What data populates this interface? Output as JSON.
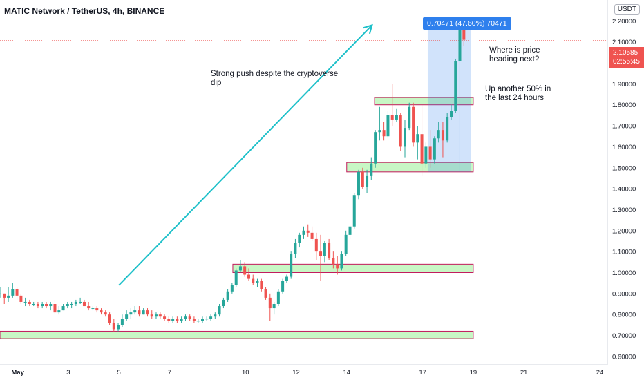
{
  "header": {
    "symbol_title": "MATIC Network / TetherUS, 4h, BINANCE",
    "currency": "USDT"
  },
  "annotations": {
    "push": [
      "Strong push despite the cryptoverse",
      "dip"
    ],
    "heading": [
      "Where is price",
      "heading next?"
    ],
    "up": [
      "Up another 50% in",
      "the last 24 hours"
    ]
  },
  "measure_label": "0.70471 (47.60%) 70471",
  "current_price": {
    "value": "2.10585",
    "countdown": "02:55:45"
  },
  "colors": {
    "up": "#26a69a",
    "down": "#ef5350",
    "zone_fill": "#c8f7c5",
    "zone_border": "#c2185b",
    "arrow": "#1ec0c9",
    "measure_fill": "#2f80ed"
  },
  "chart_data": {
    "type": "candlestick",
    "title": "MATIC Network / TetherUS, 4h, BINANCE",
    "ylim": [
      0.56,
      2.3
    ],
    "y_ticks": [
      "2.20000",
      "2.10000",
      "2.00000",
      "1.90000",
      "1.80000",
      "1.70000",
      "1.60000",
      "1.50000",
      "1.40000",
      "1.30000",
      "1.20000",
      "1.10000",
      "1.00000",
      "0.90000",
      "0.80000",
      "0.70000",
      "0.60000"
    ],
    "y_tick_values": [
      2.2,
      2.1,
      2.0,
      1.9,
      1.8,
      1.7,
      1.6,
      1.5,
      1.4,
      1.3,
      1.2,
      1.1,
      1.0,
      0.9,
      0.8,
      0.7,
      0.6
    ],
    "xlim": [
      0.3,
      24.3
    ],
    "x_ticks": [
      {
        "label": "May",
        "value": 1
      },
      {
        "label": "3",
        "value": 3
      },
      {
        "label": "5",
        "value": 5
      },
      {
        "label": "7",
        "value": 7
      },
      {
        "label": "10",
        "value": 10
      },
      {
        "label": "12",
        "value": 12
      },
      {
        "label": "14",
        "value": 14
      },
      {
        "label": "17",
        "value": 17
      },
      {
        "label": "19",
        "value": 19
      },
      {
        "label": "21",
        "value": 21
      },
      {
        "label": "24",
        "value": 24
      }
    ],
    "zones": [
      {
        "x0": 0.3,
        "x1": 19.0,
        "low": 0.685,
        "high": 0.72
      },
      {
        "x0": 9.5,
        "x1": 19.0,
        "low": 1.0,
        "high": 1.04
      },
      {
        "x0": 14.0,
        "x1": 19.0,
        "low": 1.48,
        "high": 1.525
      },
      {
        "x0": 15.1,
        "x1": 19.0,
        "low": 1.8,
        "high": 1.835
      }
    ],
    "arrow": {
      "x0": 5.0,
      "y0": 0.94,
      "x1": 15.0,
      "y1": 2.18
    },
    "measure_box": {
      "x0": 17.2,
      "x1": 18.9,
      "low": 1.48,
      "high": 2.185
    },
    "current_price": 2.10585,
    "candles": [
      {
        "x": 0.3,
        "o": 0.9,
        "h": 0.93,
        "l": 0.88,
        "c": 0.9
      },
      {
        "x": 0.47,
        "o": 0.9,
        "h": 0.9,
        "l": 0.85,
        "c": 0.88
      },
      {
        "x": 0.63,
        "o": 0.88,
        "h": 0.93,
        "l": 0.86,
        "c": 0.89
      },
      {
        "x": 0.8,
        "o": 0.89,
        "h": 0.95,
        "l": 0.88,
        "c": 0.92
      },
      {
        "x": 0.97,
        "o": 0.92,
        "h": 0.93,
        "l": 0.87,
        "c": 0.89
      },
      {
        "x": 1.13,
        "o": 0.89,
        "h": 0.9,
        "l": 0.85,
        "c": 0.86
      },
      {
        "x": 1.3,
        "o": 0.86,
        "h": 0.88,
        "l": 0.84,
        "c": 0.86
      },
      {
        "x": 1.47,
        "o": 0.86,
        "h": 0.87,
        "l": 0.84,
        "c": 0.85
      },
      {
        "x": 1.63,
        "o": 0.85,
        "h": 0.86,
        "l": 0.84,
        "c": 0.85
      },
      {
        "x": 1.8,
        "o": 0.85,
        "h": 0.86,
        "l": 0.83,
        "c": 0.84
      },
      {
        "x": 1.97,
        "o": 0.84,
        "h": 0.86,
        "l": 0.83,
        "c": 0.85
      },
      {
        "x": 2.13,
        "o": 0.85,
        "h": 0.86,
        "l": 0.83,
        "c": 0.84
      },
      {
        "x": 2.3,
        "o": 0.84,
        "h": 0.86,
        "l": 0.82,
        "c": 0.85
      },
      {
        "x": 2.47,
        "o": 0.85,
        "h": 0.87,
        "l": 0.8,
        "c": 0.81
      },
      {
        "x": 2.63,
        "o": 0.81,
        "h": 0.84,
        "l": 0.8,
        "c": 0.82
      },
      {
        "x": 2.8,
        "o": 0.82,
        "h": 0.85,
        "l": 0.82,
        "c": 0.84
      },
      {
        "x": 2.97,
        "o": 0.84,
        "h": 0.86,
        "l": 0.83,
        "c": 0.85
      },
      {
        "x": 3.13,
        "o": 0.85,
        "h": 0.86,
        "l": 0.83,
        "c": 0.85
      },
      {
        "x": 3.3,
        "o": 0.85,
        "h": 0.87,
        "l": 0.84,
        "c": 0.86
      },
      {
        "x": 3.47,
        "o": 0.86,
        "h": 0.88,
        "l": 0.85,
        "c": 0.86
      },
      {
        "x": 3.63,
        "o": 0.86,
        "h": 0.87,
        "l": 0.84,
        "c": 0.84
      },
      {
        "x": 3.8,
        "o": 0.84,
        "h": 0.86,
        "l": 0.82,
        "c": 0.83
      },
      {
        "x": 3.97,
        "o": 0.83,
        "h": 0.84,
        "l": 0.82,
        "c": 0.83
      },
      {
        "x": 4.13,
        "o": 0.83,
        "h": 0.84,
        "l": 0.81,
        "c": 0.82
      },
      {
        "x": 4.3,
        "o": 0.82,
        "h": 0.83,
        "l": 0.8,
        "c": 0.81
      },
      {
        "x": 4.47,
        "o": 0.81,
        "h": 0.82,
        "l": 0.79,
        "c": 0.8
      },
      {
        "x": 4.63,
        "o": 0.8,
        "h": 0.81,
        "l": 0.75,
        "c": 0.76
      },
      {
        "x": 4.8,
        "o": 0.76,
        "h": 0.78,
        "l": 0.72,
        "c": 0.73
      },
      {
        "x": 4.97,
        "o": 0.73,
        "h": 0.76,
        "l": 0.72,
        "c": 0.75
      },
      {
        "x": 5.13,
        "o": 0.75,
        "h": 0.8,
        "l": 0.74,
        "c": 0.78
      },
      {
        "x": 5.3,
        "o": 0.78,
        "h": 0.82,
        "l": 0.77,
        "c": 0.8
      },
      {
        "x": 5.47,
        "o": 0.8,
        "h": 0.83,
        "l": 0.78,
        "c": 0.81
      },
      {
        "x": 5.63,
        "o": 0.81,
        "h": 0.84,
        "l": 0.8,
        "c": 0.82
      },
      {
        "x": 5.8,
        "o": 0.82,
        "h": 0.84,
        "l": 0.79,
        "c": 0.8
      },
      {
        "x": 5.97,
        "o": 0.8,
        "h": 0.83,
        "l": 0.8,
        "c": 0.82
      },
      {
        "x": 6.13,
        "o": 0.82,
        "h": 0.83,
        "l": 0.79,
        "c": 0.8
      },
      {
        "x": 6.3,
        "o": 0.8,
        "h": 0.82,
        "l": 0.78,
        "c": 0.79
      },
      {
        "x": 6.47,
        "o": 0.79,
        "h": 0.81,
        "l": 0.78,
        "c": 0.8
      },
      {
        "x": 6.63,
        "o": 0.8,
        "h": 0.81,
        "l": 0.78,
        "c": 0.79
      },
      {
        "x": 6.8,
        "o": 0.79,
        "h": 0.8,
        "l": 0.77,
        "c": 0.78
      },
      {
        "x": 6.97,
        "o": 0.78,
        "h": 0.79,
        "l": 0.76,
        "c": 0.77
      },
      {
        "x": 7.13,
        "o": 0.77,
        "h": 0.79,
        "l": 0.76,
        "c": 0.78
      },
      {
        "x": 7.3,
        "o": 0.78,
        "h": 0.79,
        "l": 0.76,
        "c": 0.77
      },
      {
        "x": 7.47,
        "o": 0.77,
        "h": 0.79,
        "l": 0.76,
        "c": 0.78
      },
      {
        "x": 7.63,
        "o": 0.78,
        "h": 0.8,
        "l": 0.77,
        "c": 0.79
      },
      {
        "x": 7.8,
        "o": 0.79,
        "h": 0.8,
        "l": 0.77,
        "c": 0.78
      },
      {
        "x": 7.97,
        "o": 0.78,
        "h": 0.79,
        "l": 0.76,
        "c": 0.77
      },
      {
        "x": 8.13,
        "o": 0.77,
        "h": 0.78,
        "l": 0.76,
        "c": 0.77
      },
      {
        "x": 8.3,
        "o": 0.77,
        "h": 0.79,
        "l": 0.76,
        "c": 0.78
      },
      {
        "x": 8.47,
        "o": 0.78,
        "h": 0.79,
        "l": 0.77,
        "c": 0.78
      },
      {
        "x": 8.63,
        "o": 0.78,
        "h": 0.8,
        "l": 0.77,
        "c": 0.79
      },
      {
        "x": 8.8,
        "o": 0.79,
        "h": 0.81,
        "l": 0.78,
        "c": 0.8
      },
      {
        "x": 8.97,
        "o": 0.8,
        "h": 0.85,
        "l": 0.79,
        "c": 0.84
      },
      {
        "x": 9.13,
        "o": 0.84,
        "h": 0.88,
        "l": 0.83,
        "c": 0.87
      },
      {
        "x": 9.3,
        "o": 0.87,
        "h": 0.92,
        "l": 0.86,
        "c": 0.91
      },
      {
        "x": 9.47,
        "o": 0.91,
        "h": 0.95,
        "l": 0.9,
        "c": 0.94
      },
      {
        "x": 9.63,
        "o": 0.94,
        "h": 1.02,
        "l": 0.93,
        "c": 1.01
      },
      {
        "x": 9.8,
        "o": 1.01,
        "h": 1.06,
        "l": 1.0,
        "c": 1.03
      },
      {
        "x": 9.97,
        "o": 1.03,
        "h": 1.05,
        "l": 0.98,
        "c": 0.99
      },
      {
        "x": 10.13,
        "o": 0.99,
        "h": 1.02,
        "l": 0.96,
        "c": 0.97
      },
      {
        "x": 10.3,
        "o": 0.97,
        "h": 0.99,
        "l": 0.94,
        "c": 0.95
      },
      {
        "x": 10.47,
        "o": 0.95,
        "h": 0.97,
        "l": 0.93,
        "c": 0.96
      },
      {
        "x": 10.63,
        "o": 0.96,
        "h": 0.97,
        "l": 0.91,
        "c": 0.92
      },
      {
        "x": 10.8,
        "o": 0.92,
        "h": 0.93,
        "l": 0.87,
        "c": 0.88
      },
      {
        "x": 10.97,
        "o": 0.88,
        "h": 0.9,
        "l": 0.77,
        "c": 0.83
      },
      {
        "x": 11.13,
        "o": 0.83,
        "h": 0.86,
        "l": 0.8,
        "c": 0.85
      },
      {
        "x": 11.3,
        "o": 0.85,
        "h": 0.92,
        "l": 0.84,
        "c": 0.91
      },
      {
        "x": 11.47,
        "o": 0.91,
        "h": 0.97,
        "l": 0.9,
        "c": 0.96
      },
      {
        "x": 11.63,
        "o": 0.96,
        "h": 0.99,
        "l": 0.95,
        "c": 0.98
      },
      {
        "x": 11.8,
        "o": 0.98,
        "h": 1.1,
        "l": 0.97,
        "c": 1.09
      },
      {
        "x": 11.97,
        "o": 1.09,
        "h": 1.16,
        "l": 1.07,
        "c": 1.14
      },
      {
        "x": 12.13,
        "o": 1.14,
        "h": 1.19,
        "l": 1.12,
        "c": 1.18
      },
      {
        "x": 12.3,
        "o": 1.18,
        "h": 1.22,
        "l": 1.16,
        "c": 1.2
      },
      {
        "x": 12.47,
        "o": 1.2,
        "h": 1.23,
        "l": 1.17,
        "c": 1.19
      },
      {
        "x": 12.63,
        "o": 1.19,
        "h": 1.22,
        "l": 1.15,
        "c": 1.16
      },
      {
        "x": 12.8,
        "o": 1.16,
        "h": 1.19,
        "l": 1.06,
        "c": 1.1
      },
      {
        "x": 12.97,
        "o": 1.1,
        "h": 1.18,
        "l": 0.96,
        "c": 1.08
      },
      {
        "x": 13.13,
        "o": 1.08,
        "h": 1.15,
        "l": 1.05,
        "c": 1.14
      },
      {
        "x": 13.3,
        "o": 1.14,
        "h": 1.16,
        "l": 1.06,
        "c": 1.07
      },
      {
        "x": 13.47,
        "o": 1.07,
        "h": 1.1,
        "l": 1.02,
        "c": 1.04
      },
      {
        "x": 13.63,
        "o": 1.04,
        "h": 1.08,
        "l": 0.99,
        "c": 1.02
      },
      {
        "x": 13.8,
        "o": 1.02,
        "h": 1.1,
        "l": 1.01,
        "c": 1.09
      },
      {
        "x": 13.97,
        "o": 1.09,
        "h": 1.2,
        "l": 1.08,
        "c": 1.18
      },
      {
        "x": 14.13,
        "o": 1.18,
        "h": 1.23,
        "l": 1.16,
        "c": 1.22
      },
      {
        "x": 14.3,
        "o": 1.22,
        "h": 1.38,
        "l": 1.21,
        "c": 1.37
      },
      {
        "x": 14.47,
        "o": 1.37,
        "h": 1.49,
        "l": 1.35,
        "c": 1.48
      },
      {
        "x": 14.63,
        "o": 1.48,
        "h": 1.5,
        "l": 1.4,
        "c": 1.41
      },
      {
        "x": 14.8,
        "o": 1.41,
        "h": 1.49,
        "l": 1.38,
        "c": 1.46
      },
      {
        "x": 14.97,
        "o": 1.46,
        "h": 1.55,
        "l": 1.44,
        "c": 1.52
      },
      {
        "x": 15.13,
        "o": 1.52,
        "h": 1.68,
        "l": 1.5,
        "c": 1.67
      },
      {
        "x": 15.3,
        "o": 1.67,
        "h": 1.79,
        "l": 1.63,
        "c": 1.68
      },
      {
        "x": 15.47,
        "o": 1.68,
        "h": 1.72,
        "l": 1.63,
        "c": 1.65
      },
      {
        "x": 15.63,
        "o": 1.65,
        "h": 1.77,
        "l": 1.64,
        "c": 1.75
      },
      {
        "x": 15.8,
        "o": 1.75,
        "h": 1.9,
        "l": 1.7,
        "c": 1.73
      },
      {
        "x": 15.97,
        "o": 1.73,
        "h": 1.78,
        "l": 1.72,
        "c": 1.75
      },
      {
        "x": 16.13,
        "o": 1.75,
        "h": 1.76,
        "l": 1.58,
        "c": 1.6
      },
      {
        "x": 16.3,
        "o": 1.6,
        "h": 1.73,
        "l": 1.55,
        "c": 1.69
      },
      {
        "x": 16.47,
        "o": 1.69,
        "h": 1.81,
        "l": 1.68,
        "c": 1.79
      },
      {
        "x": 16.63,
        "o": 1.79,
        "h": 1.81,
        "l": 1.6,
        "c": 1.62
      },
      {
        "x": 16.8,
        "o": 1.62,
        "h": 1.7,
        "l": 1.54,
        "c": 1.66
      },
      {
        "x": 16.97,
        "o": 1.66,
        "h": 1.8,
        "l": 1.46,
        "c": 1.52
      },
      {
        "x": 17.13,
        "o": 1.52,
        "h": 1.62,
        "l": 1.5,
        "c": 1.6
      },
      {
        "x": 17.3,
        "o": 1.6,
        "h": 1.68,
        "l": 1.5,
        "c": 1.54
      },
      {
        "x": 17.47,
        "o": 1.54,
        "h": 1.65,
        "l": 1.52,
        "c": 1.64
      },
      {
        "x": 17.63,
        "o": 1.64,
        "h": 1.72,
        "l": 1.62,
        "c": 1.68
      },
      {
        "x": 17.8,
        "o": 1.68,
        "h": 1.72,
        "l": 1.55,
        "c": 1.63
      },
      {
        "x": 17.97,
        "o": 1.63,
        "h": 1.76,
        "l": 1.62,
        "c": 1.74
      },
      {
        "x": 18.13,
        "o": 1.74,
        "h": 1.8,
        "l": 1.73,
        "c": 1.77
      },
      {
        "x": 18.3,
        "o": 1.77,
        "h": 2.02,
        "l": 1.76,
        "c": 2.01
      },
      {
        "x": 18.47,
        "o": 2.01,
        "h": 2.18,
        "l": 2.0,
        "c": 2.17
      },
      {
        "x": 18.63,
        "o": 2.17,
        "h": 2.19,
        "l": 2.08,
        "c": 2.11
      }
    ]
  }
}
